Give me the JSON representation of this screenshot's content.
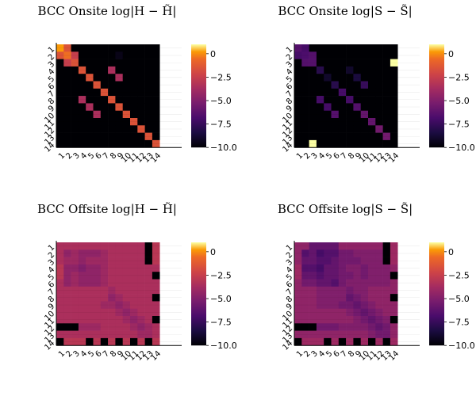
{
  "chart_data": [
    {
      "type": "heatmap",
      "title": "BCC Onsite log|H − H̃|",
      "xlabel": "",
      "ylabel": "",
      "categories": [
        "1",
        "2",
        "3",
        "4",
        "5",
        "6",
        "7",
        "8",
        "9",
        "10",
        "11",
        "12",
        "13",
        "14"
      ],
      "colorbar": {
        "range": [
          -10,
          1
        ],
        "ticks": [
          0,
          -2.5,
          -5,
          -7.5,
          -10
        ],
        "tick_labels": [
          "0",
          "−2.5",
          "−5.0",
          "−7.5",
          "−10.0"
        ]
      },
      "grid": true,
      "values": [
        [
          0.2,
          -1.5,
          -10,
          -10,
          -10,
          -10,
          -10,
          -10,
          -10,
          -10,
          -10,
          -10,
          -10,
          -10
        ],
        [
          -1.5,
          -0.5,
          -2.5,
          -10,
          -10,
          -10,
          -10,
          -10,
          -9.5,
          -10,
          -10,
          -10,
          -10,
          -10
        ],
        [
          -10,
          -2.5,
          -1.5,
          -10,
          -10,
          -10,
          -10,
          -10,
          -10,
          -10,
          -10,
          -10,
          -10,
          -10
        ],
        [
          -10,
          -10,
          -10,
          -1.5,
          -10,
          -10,
          -10,
          -3.5,
          -10,
          -10,
          -10,
          -10,
          -10,
          -10
        ],
        [
          -10,
          -10,
          -10,
          -10,
          -1.5,
          -10,
          -10,
          -10,
          -3.5,
          -10,
          -10,
          -10,
          -10,
          -10
        ],
        [
          -10,
          -10,
          -10,
          -10,
          -10,
          -1.5,
          -10,
          -10,
          -10,
          -10,
          -10,
          -10,
          -10,
          -10
        ],
        [
          -10,
          -10,
          -10,
          -10,
          -10,
          -10,
          -1.5,
          -10,
          -10,
          -10,
          -10,
          -10,
          -10,
          -10
        ],
        [
          -10,
          -10,
          -10,
          -3.5,
          -10,
          -10,
          -10,
          -1.5,
          -10,
          -10,
          -10,
          -10,
          -10,
          -10
        ],
        [
          -10,
          -10,
          -10,
          -10,
          -3.5,
          -10,
          -10,
          -10,
          -1.5,
          -10,
          -10,
          -10,
          -10,
          -10
        ],
        [
          -10,
          -10,
          -10,
          -10,
          -10,
          -3.5,
          -10,
          -10,
          -10,
          -1.5,
          -10,
          -10,
          -10,
          -10
        ],
        [
          -10,
          -10,
          -10,
          -10,
          -10,
          -10,
          -10,
          -10,
          -10,
          -10,
          -1.5,
          -10,
          -10,
          -10
        ],
        [
          -10,
          -10,
          -10,
          -10,
          -10,
          -10,
          -10,
          -10,
          -10,
          -10,
          -10,
          -1.5,
          -10,
          -10
        ],
        [
          -10,
          -10,
          -10,
          -10,
          -10,
          -10,
          -10,
          -10,
          -10,
          -10,
          -10,
          -10,
          -1.5,
          -10
        ],
        [
          -10,
          -10,
          -10,
          -10,
          -10,
          -10,
          -10,
          -10,
          -10,
          -10,
          -10,
          -10,
          -10,
          -1.5
        ]
      ]
    },
    {
      "type": "heatmap",
      "title": "BCC Onsite log|S − S̃|",
      "xlabel": "",
      "ylabel": "",
      "categories": [
        "1",
        "2",
        "3",
        "4",
        "5",
        "6",
        "7",
        "8",
        "9",
        "10",
        "11",
        "12",
        "13",
        "14"
      ],
      "colorbar": {
        "range": [
          -10,
          1
        ],
        "ticks": [
          0,
          -2.5,
          -5,
          -7.5,
          -10
        ],
        "tick_labels": [
          "0",
          "−2.5",
          "−5.0",
          "−7.5",
          "−10.0"
        ]
      },
      "grid": true,
      "values": [
        [
          -6.5,
          -7.0,
          -10,
          -10,
          -10,
          -10,
          -10,
          -10,
          -10,
          -10,
          -10,
          -10,
          -10,
          -10
        ],
        [
          -7.0,
          -6.8,
          -6.5,
          -10,
          -10,
          -10,
          -10,
          -10,
          -10,
          -10,
          -10,
          -10,
          -10,
          -10
        ],
        [
          -10,
          -6.5,
          -6.5,
          -10,
          -10,
          -10,
          -10,
          -10,
          -10,
          -10,
          -10,
          -10,
          -10,
          1
        ],
        [
          -10,
          -10,
          -10,
          -8.0,
          -10,
          -10,
          -10,
          -9.0,
          -10,
          -10,
          -10,
          -10,
          -10,
          -10
        ],
        [
          -10,
          -10,
          -10,
          -10,
          -9.0,
          -10,
          -10,
          -10,
          -8.5,
          -10,
          -10,
          -10,
          -10,
          -10
        ],
        [
          -10,
          -10,
          -10,
          -10,
          -10,
          -8.0,
          -10,
          -10,
          -10,
          -7.5,
          -10,
          -10,
          -10,
          -10
        ],
        [
          -10,
          -10,
          -10,
          -10,
          -10,
          -10,
          -7.0,
          -10,
          -10,
          -10,
          -10,
          -10,
          -10,
          -10
        ],
        [
          -10,
          -10,
          -10,
          -7.0,
          -10,
          -10,
          -10,
          -7.0,
          -10,
          -10,
          -10,
          -10,
          -10,
          -10
        ],
        [
          -10,
          -10,
          -10,
          -10,
          -7.0,
          -10,
          -10,
          -10,
          -6.5,
          -10,
          -10,
          -10,
          -10,
          -10
        ],
        [
          -10,
          -10,
          -10,
          -10,
          -10,
          -6.5,
          -10,
          -10,
          -10,
          -6.0,
          -10,
          -10,
          -10,
          -10
        ],
        [
          -10,
          -10,
          -10,
          -10,
          -10,
          -10,
          -10,
          -10,
          -10,
          -10,
          -6.0,
          -10,
          -10,
          -10
        ],
        [
          -10,
          -10,
          -10,
          -10,
          -10,
          -10,
          -10,
          -10,
          -10,
          -10,
          -10,
          -5.5,
          -10,
          -10
        ],
        [
          -10,
          -10,
          -10,
          -10,
          -10,
          -10,
          -10,
          -10,
          -10,
          -10,
          -10,
          -10,
          -5.5,
          -10
        ],
        [
          -10,
          -10,
          1,
          -10,
          -10,
          -10,
          -10,
          -10,
          -10,
          -10,
          -10,
          -10,
          -10,
          -10
        ]
      ]
    },
    {
      "type": "heatmap",
      "title": "BCC Offsite log|H − H̃|",
      "xlabel": "",
      "ylabel": "",
      "categories": [
        "1",
        "2",
        "3",
        "4",
        "5",
        "6",
        "7",
        "8",
        "9",
        "10",
        "11",
        "12",
        "13",
        "14"
      ],
      "colorbar": {
        "range": [
          -10,
          1
        ],
        "ticks": [
          0,
          -2.5,
          -5,
          -7.5,
          -10
        ],
        "tick_labels": [
          "0",
          "−2.5",
          "−5.0",
          "−7.5",
          "−10.0"
        ]
      },
      "grid": true,
      "values": [
        [
          -3.5,
          -3.5,
          -3.5,
          -3.5,
          -3.5,
          -3.5,
          -3.5,
          -3.5,
          -3.5,
          -3.5,
          -3.5,
          -3.5,
          -10,
          -3.0
        ],
        [
          -3.5,
          -4.5,
          -4.0,
          -4.5,
          -4.5,
          -4.5,
          -4.0,
          -3.5,
          -3.5,
          -3.5,
          -3.5,
          -3.5,
          -10,
          -3.0
        ],
        [
          -3.5,
          -4.0,
          -4.0,
          -4.5,
          -4.0,
          -4.0,
          -4.0,
          -3.5,
          -3.5,
          -3.5,
          -3.5,
          -3.5,
          -10,
          -3.0
        ],
        [
          -3.0,
          -4.5,
          -4.5,
          -5.0,
          -4.5,
          -4.5,
          -4.0,
          -3.5,
          -3.5,
          -3.5,
          -3.5,
          -3.5,
          -3.5,
          -3.5
        ],
        [
          -3.0,
          -4.5,
          -4.0,
          -4.5,
          -4.5,
          -4.5,
          -4.0,
          -3.5,
          -3.5,
          -3.5,
          -3.5,
          -3.5,
          -3.5,
          -10
        ],
        [
          -3.5,
          -4.5,
          -4.0,
          -4.5,
          -4.5,
          -4.5,
          -4.0,
          -3.5,
          -3.5,
          -3.5,
          -3.5,
          -3.5,
          -3.5,
          -3.5
        ],
        [
          -3.5,
          -3.5,
          -3.5,
          -3.5,
          -3.5,
          -3.5,
          -3.5,
          -4.0,
          -3.5,
          -3.5,
          -3.5,
          -3.5,
          -3.5,
          -3.5
        ],
        [
          -3.5,
          -3.5,
          -3.5,
          -3.5,
          -3.5,
          -3.5,
          -3.5,
          -4.5,
          -4.0,
          -3.5,
          -3.5,
          -3.5,
          -3.5,
          -10
        ],
        [
          -3.5,
          -3.5,
          -3.5,
          -3.5,
          -3.5,
          -3.5,
          -4.0,
          -4.0,
          -4.5,
          -4.0,
          -3.5,
          -3.5,
          -3.5,
          -3.5
        ],
        [
          -3.5,
          -3.5,
          -3.5,
          -3.5,
          -3.5,
          -3.5,
          -3.5,
          -3.5,
          -4.0,
          -4.5,
          -4.0,
          -3.5,
          -3.5,
          -3.5
        ],
        [
          -3.5,
          -3.5,
          -3.5,
          -3.5,
          -3.5,
          -3.5,
          -3.5,
          -3.5,
          -3.5,
          -4.0,
          -4.5,
          -4.0,
          -3.5,
          -10
        ],
        [
          -10,
          -10,
          -10,
          -4.0,
          -4.0,
          -4.0,
          -3.5,
          -3.5,
          -3.5,
          -3.5,
          -4.0,
          -4.5,
          -4.0,
          -3.5
        ],
        [
          -3.5,
          -3.5,
          -3.5,
          -3.5,
          -3.5,
          -3.5,
          -3.5,
          -3.5,
          -3.5,
          -3.5,
          -3.5,
          -4.0,
          -4.0,
          -3.5
        ],
        [
          -10,
          -3.0,
          -3.0,
          -3.0,
          -10,
          -3.0,
          -10,
          -3.0,
          -10,
          -3.0,
          -10,
          -3.0,
          -10,
          -3.0
        ]
      ]
    },
    {
      "type": "heatmap",
      "title": "BCC Offsite log|S − S̃|",
      "xlabel": "",
      "ylabel": "",
      "categories": [
        "1",
        "2",
        "3",
        "4",
        "5",
        "6",
        "7",
        "8",
        "9",
        "10",
        "11",
        "12",
        "13",
        "14"
      ],
      "colorbar": {
        "range": [
          -10,
          1
        ],
        "ticks": [
          0,
          -2.5,
          -5,
          -7.5,
          -10
        ],
        "tick_labels": [
          "0",
          "−2.5",
          "−5.0",
          "−7.5",
          "−10.0"
        ]
      },
      "grid": true,
      "values": [
        [
          -4.5,
          -4.5,
          -6.0,
          -6.0,
          -6.0,
          -6.0,
          -4.5,
          -4.5,
          -4.5,
          -4.5,
          -4.5,
          -4.5,
          -10,
          -4.0
        ],
        [
          -4.5,
          -6.5,
          -6.0,
          -7.0,
          -6.5,
          -6.5,
          -5.5,
          -5.5,
          -5.0,
          -5.0,
          -5.0,
          -5.0,
          -10,
          -4.0
        ],
        [
          -4.5,
          -6.0,
          -6.0,
          -6.5,
          -6.5,
          -6.0,
          -5.5,
          -5.5,
          -5.5,
          -5.0,
          -5.0,
          -5.0,
          -10,
          -4.0
        ],
        [
          -4.0,
          -6.5,
          -6.5,
          -7.0,
          -6.0,
          -6.0,
          -5.5,
          -5.0,
          -5.0,
          -5.5,
          -5.0,
          -5.0,
          -5.0,
          -4.5
        ],
        [
          -4.0,
          -6.0,
          -6.0,
          -6.5,
          -6.0,
          -6.0,
          -5.5,
          -5.5,
          -5.0,
          -5.5,
          -5.0,
          -5.0,
          -5.0,
          -10
        ],
        [
          -4.5,
          -5.5,
          -5.5,
          -6.0,
          -6.0,
          -6.5,
          -5.5,
          -5.0,
          -5.0,
          -5.0,
          -5.0,
          -5.0,
          -5.0,
          -4.5
        ],
        [
          -4.5,
          -4.5,
          -4.5,
          -5.0,
          -5.0,
          -5.0,
          -5.0,
          -5.5,
          -5.0,
          -5.0,
          -4.5,
          -4.5,
          -4.5,
          -4.5
        ],
        [
          -4.5,
          -4.5,
          -4.5,
          -5.0,
          -5.0,
          -5.0,
          -5.0,
          -6.0,
          -5.5,
          -5.0,
          -4.5,
          -4.5,
          -4.5,
          -10
        ],
        [
          -4.5,
          -4.5,
          -4.5,
          -5.0,
          -5.0,
          -5.0,
          -5.5,
          -5.5,
          -6.0,
          -5.5,
          -5.0,
          -4.5,
          -4.5,
          -4.5
        ],
        [
          -4.5,
          -4.5,
          -4.5,
          -4.5,
          -4.5,
          -4.5,
          -4.5,
          -5.0,
          -5.5,
          -6.0,
          -5.5,
          -5.0,
          -4.5,
          -4.5
        ],
        [
          -4.5,
          -4.5,
          -4.5,
          -4.5,
          -4.5,
          -4.5,
          -4.5,
          -4.5,
          -5.0,
          -5.5,
          -6.0,
          -5.5,
          -5.0,
          -10
        ],
        [
          -10,
          -10,
          -10,
          -5.5,
          -5.5,
          -5.5,
          -5.0,
          -5.0,
          -5.0,
          -5.0,
          -5.5,
          -6.0,
          -5.5,
          -4.5
        ],
        [
          -4.5,
          -4.5,
          -4.5,
          -4.5,
          -4.5,
          -4.5,
          -4.5,
          -4.5,
          -4.5,
          -4.5,
          -5.0,
          -5.5,
          -5.5,
          -4.5
        ],
        [
          -10,
          -4.0,
          -4.0,
          -4.0,
          -10,
          -4.0,
          -10,
          -4.0,
          -10,
          -4.0,
          -10,
          -4.0,
          -10,
          -4.0
        ]
      ]
    }
  ]
}
